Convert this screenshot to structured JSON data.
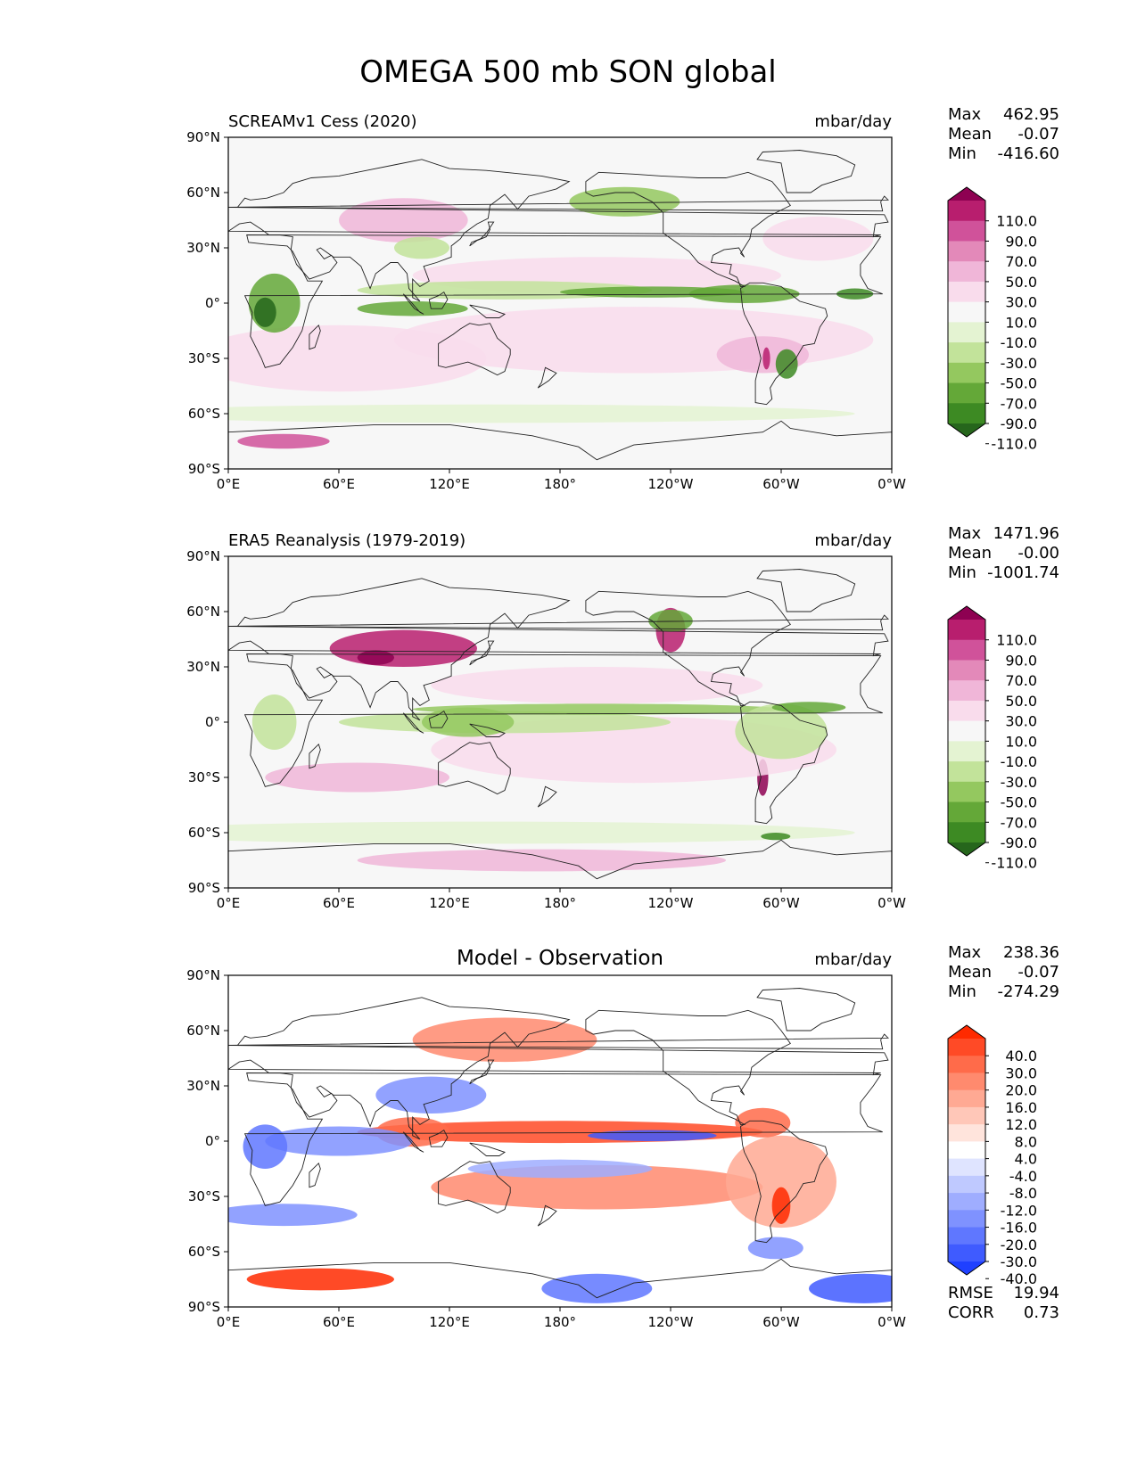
{
  "title": "OMEGA 500 mb SON global",
  "chart_data": [
    {
      "type": "heatmap",
      "id": "model",
      "left_title": "SCREAMv1 Cess (2020)",
      "center_title": "",
      "units": "mbar/day",
      "xlim": [
        0,
        360
      ],
      "ylim": [
        -90,
        90
      ],
      "x_ticks": [
        "0°E",
        "60°E",
        "120°E",
        "180°",
        "120°W",
        "60°W",
        "0°W"
      ],
      "y_ticks": [
        "90°N",
        "60°N",
        "30°N",
        "0°",
        "30°S",
        "60°S",
        "90°S"
      ],
      "stats": [
        {
          "label": "Max",
          "value": "462.95"
        },
        {
          "label": "Mean",
          "value": "-0.07"
        },
        {
          "label": "Min",
          "value": "-416.60"
        }
      ],
      "colorbar_levels": [
        "110.0",
        "90.0",
        "70.0",
        "50.0",
        "30.0",
        "10.0",
        "-10.0",
        "-30.0",
        "-50.0",
        "-70.0",
        "-90.0",
        "-110.0"
      ],
      "colorbar_colors": [
        "#8e0152",
        "#b81e6e",
        "#d0529a",
        "#e389b9",
        "#f0b6d8",
        "#f9dcec",
        "#f7f7f7",
        "#e4f3d2",
        "#c2e39a",
        "#94c85f",
        "#64a838",
        "#3d8a23",
        "#26661c"
      ],
      "extra_stats": []
    },
    {
      "type": "heatmap",
      "id": "obs",
      "left_title": "ERA5 Reanalysis (1979-2019)",
      "center_title": "",
      "units": "mbar/day",
      "xlim": [
        0,
        360
      ],
      "ylim": [
        -90,
        90
      ],
      "x_ticks": [
        "0°E",
        "60°E",
        "120°E",
        "180°",
        "120°W",
        "60°W",
        "0°W"
      ],
      "y_ticks": [
        "90°N",
        "60°N",
        "30°N",
        "0°",
        "30°S",
        "60°S",
        "90°S"
      ],
      "stats": [
        {
          "label": "Max",
          "value": "1471.96"
        },
        {
          "label": "Mean",
          "value": "-0.00"
        },
        {
          "label": "Min",
          "value": "-1001.74"
        }
      ],
      "colorbar_levels": [
        "110.0",
        "90.0",
        "70.0",
        "50.0",
        "30.0",
        "10.0",
        "-10.0",
        "-30.0",
        "-50.0",
        "-70.0",
        "-90.0",
        "-110.0"
      ],
      "colorbar_colors": [
        "#8e0152",
        "#b81e6e",
        "#d0529a",
        "#e389b9",
        "#f0b6d8",
        "#f9dcec",
        "#f7f7f7",
        "#e4f3d2",
        "#c2e39a",
        "#94c85f",
        "#64a838",
        "#3d8a23",
        "#26661c"
      ],
      "extra_stats": []
    },
    {
      "type": "heatmap",
      "id": "diff",
      "left_title": "",
      "center_title": "Model - Observation",
      "units": "mbar/day",
      "xlim": [
        0,
        360
      ],
      "ylim": [
        -90,
        90
      ],
      "x_ticks": [
        "0°E",
        "60°E",
        "120°E",
        "180°",
        "120°W",
        "60°W",
        "0°W"
      ],
      "y_ticks": [
        "90°N",
        "60°N",
        "30°N",
        "0°",
        "30°S",
        "60°S",
        "90°S"
      ],
      "stats": [
        {
          "label": "Max",
          "value": "238.36"
        },
        {
          "label": "Mean",
          "value": "-0.07"
        },
        {
          "label": "Min",
          "value": "-274.29"
        }
      ],
      "colorbar_levels": [
        "40.0",
        "30.0",
        "20.0",
        "16.0",
        "12.0",
        "8.0",
        "4.0",
        "-4.0",
        "-8.0",
        "-12.0",
        "-16.0",
        "-20.0",
        "-30.0",
        "-40.0"
      ],
      "colorbar_colors": [
        "#ff2a00",
        "#ff4a26",
        "#ff6b4a",
        "#ff8a6e",
        "#ffa993",
        "#ffc7b8",
        "#ffe4dc",
        "#ffffff",
        "#dfe4ff",
        "#bfc9ff",
        "#9fadff",
        "#7f92ff",
        "#5f77ff",
        "#3f5bff",
        "#1f40ff"
      ],
      "extra_stats": [
        {
          "label": "RMSE",
          "value": "19.94"
        },
        {
          "label": "CORR",
          "value": "0.73"
        }
      ]
    }
  ]
}
